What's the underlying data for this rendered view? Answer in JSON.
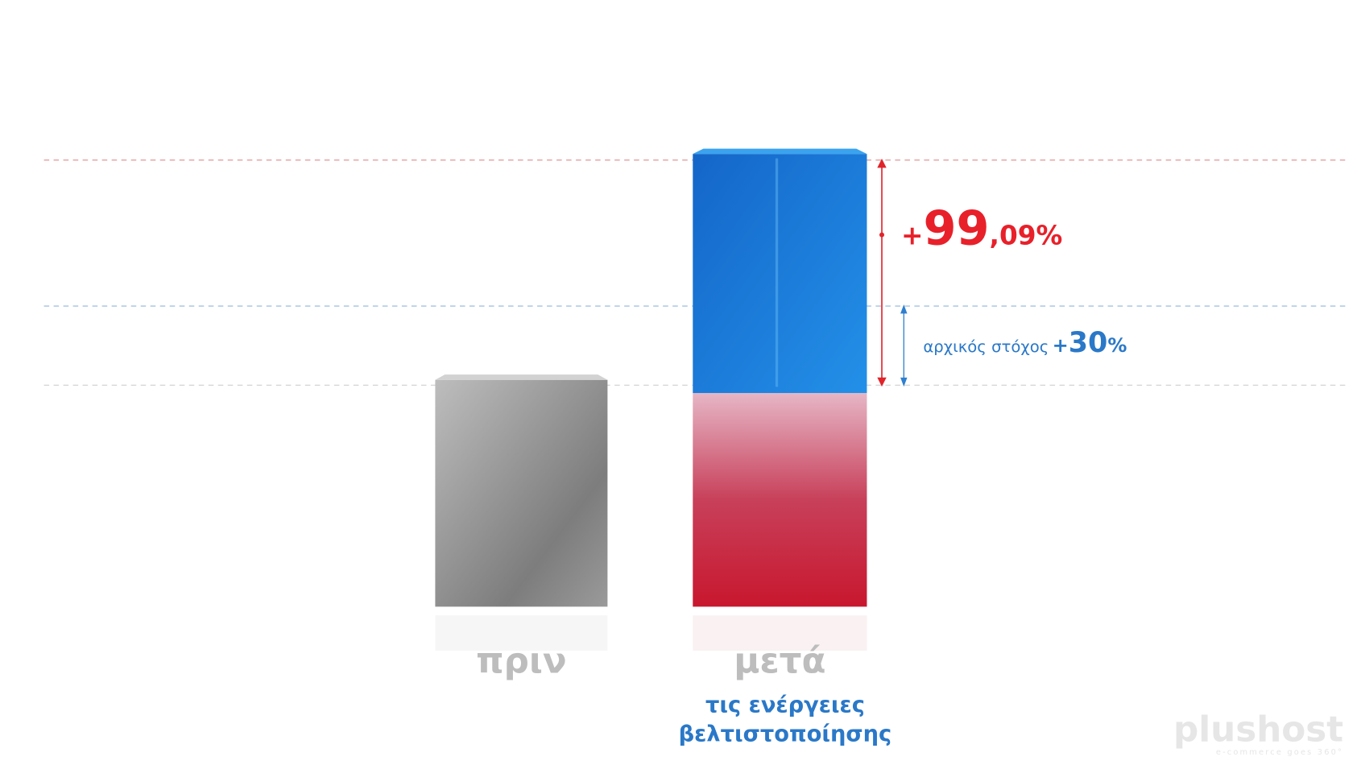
{
  "result": {
    "sign": "+",
    "whole": "99",
    "fraction": ",09%"
  },
  "target": {
    "text": "αρχικός στόχος",
    "sign": "+",
    "whole": "30",
    "unit": "%"
  },
  "labels": {
    "before": "πριν",
    "after": "μετά",
    "after_line1": "τις ενέργειες",
    "after_line2": "βελτιστοποίησης"
  },
  "logo": {
    "name": "plushost",
    "tagline": "e-commerce goes 360°"
  }
}
